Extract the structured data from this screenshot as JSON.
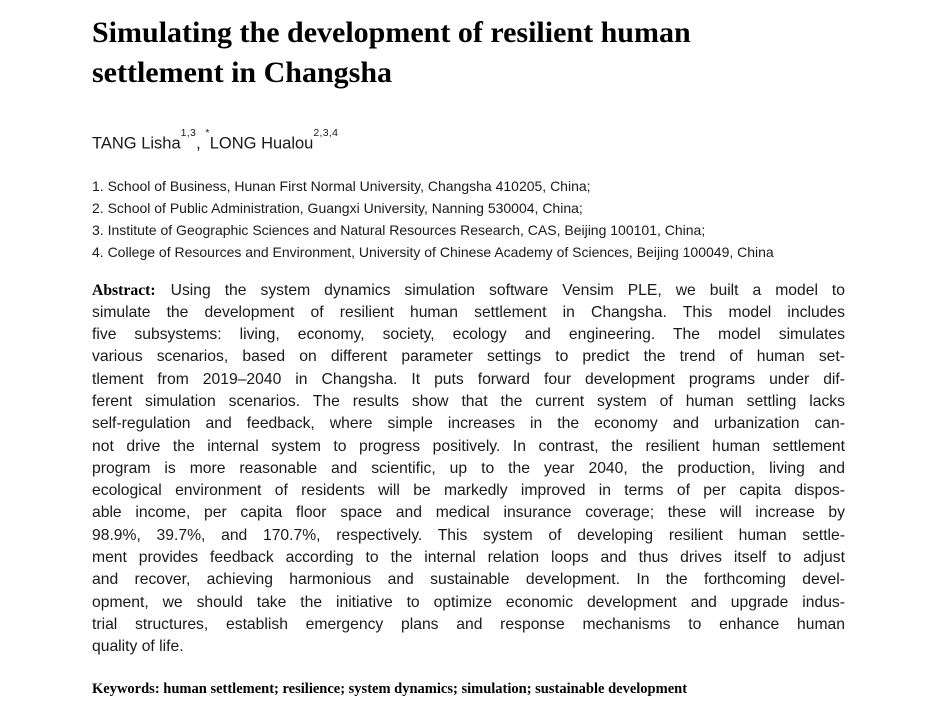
{
  "colors": {
    "background": "#ffffff",
    "title_text": "#000000",
    "body_text": "#1a1a1a"
  },
  "paper": {
    "title_lines": [
      "Simulating the development of resilient human",
      "settlement in Changsha"
    ],
    "authors": {
      "name1": "TANG Lisha",
      "sup1": "1,3",
      "separator": ",",
      "star": "*",
      "name2": "LONG Hualou",
      "sup2": "2,3,4"
    },
    "affiliations": [
      "1. School of Business, Hunan First Normal University, Changsha 410205, China;",
      "2. School of Public Administration, Guangxi University, Nanning 530004, China;",
      "3. Institute of Geographic Sciences and Natural Resources Research, CAS, Beijing 100101, China;",
      "4. College of Resources and Environment, University of Chinese Academy of Sciences, Beijing 100049, China"
    ],
    "abstract": {
      "label": "Abstract:",
      "first_line": "Using the system dynamics simulation software Vensim PLE, we built a model to",
      "lines": [
        "simulate the development of resilient human settlement in Changsha. This model includes",
        "five subsystems: living, economy, society, ecology and engineering. The model simulates",
        "various scenarios, based on different parameter settings to predict the trend of human set-",
        "tlement from 2019–2040 in Changsha. It puts forward four development programs under dif-",
        "ferent simulation scenarios. The results show that the current system of human settling lacks",
        "self-regulation and feedback, where simple increases in the economy and urbanization can-",
        "not drive the internal system to progress positively. In contrast, the resilient human settlement",
        "program is more reasonable and scientific, up to the year 2040, the production, living and",
        "ecological environment of residents will be markedly improved in terms of per capita dispos-",
        "able income, per capita floor space and medical insurance coverage; these will increase by",
        "98.9%, 39.7%, and 170.7%, respectively. This system of developing resilient human settle-",
        "ment provides feedback according to the internal relation loops and thus drives itself to adjust",
        "and recover, achieving harmonious and sustainable development. In the forthcoming devel-",
        "opment, we should take the initiative to optimize economic development and upgrade indus-",
        "trial structures, establish emergency plans and response mechanisms to enhance human",
        "quality of life."
      ]
    },
    "keywords": {
      "label": "Keywords:",
      "text": "human settlement; resilience; system dynamics; simulation; sustainable development"
    }
  }
}
